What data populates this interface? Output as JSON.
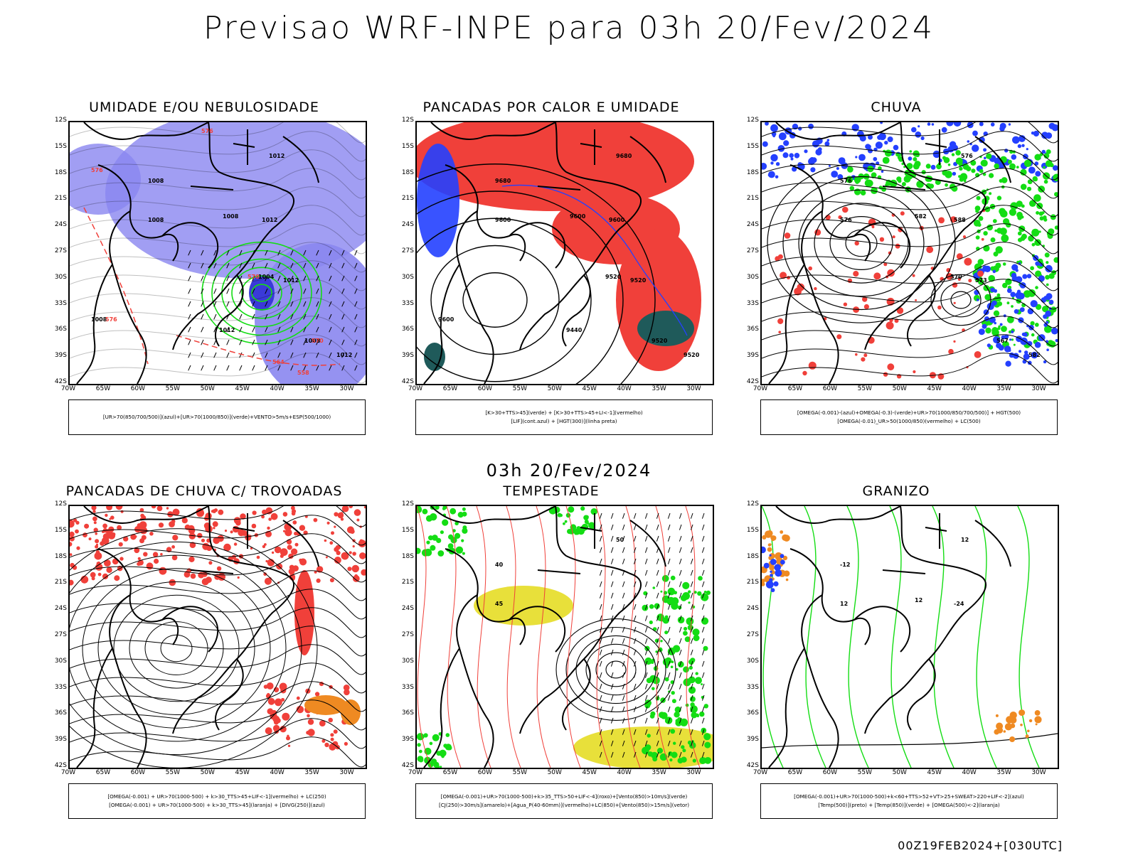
{
  "title": "Previsao WRF-INPE  para 03h 20/Fev/2024",
  "mid_title": "03h 20/Fev/2024",
  "footer": "00Z19FEB2024+[030UTC]",
  "axes": {
    "lat_labels": [
      "12S",
      "15S",
      "18S",
      "21S",
      "24S",
      "27S",
      "30S",
      "33S",
      "36S",
      "39S",
      "42S"
    ],
    "lon_labels": [
      "70W",
      "65W",
      "60W",
      "55W",
      "50W",
      "45W",
      "40W",
      "35W",
      "30W"
    ]
  },
  "colors": {
    "red": "#f0403a",
    "blue": "#2440ff",
    "green": "#14dd14",
    "lavender": "#8a86f0",
    "teal": "#1f5a5a",
    "orange": "#ef8a22",
    "yellow": "#e8e03a"
  },
  "panels": [
    {
      "title": "UMIDADE E/OU NEBULOSIDADE",
      "legend": [
        "[UR>70(850/700/500)](azul)+[UR>70(1000/850)](verde)+VENTO>5m/s+ESP(500/1000)"
      ],
      "labels": [
        "1012",
        "1008",
        "1008",
        "1008",
        "1012",
        "1012",
        "1004",
        "1008",
        "1012",
        "1008",
        "1012",
        "576",
        "576",
        "576",
        "570",
        "570",
        "564",
        "558"
      ]
    },
    {
      "title": "PANCADAS POR CALOR E UMIDADE",
      "legend": [
        "[K>30+TTS>45](verde) + [K>30+TTS>45+LI<-1](vermelho)",
        "[LIF](cont.azul) + [HGT(300)](linha preta)"
      ],
      "labels": [
        "9680",
        "9680",
        "9600",
        "9600",
        "9600",
        "9520",
        "9520",
        "9520",
        "9520",
        "9600",
        "9440"
      ]
    },
    {
      "title": "CHUVA",
      "legend": [
        "[OMEGA(-0.001)-(azul)+OMEGA(-0.3)-(verde)+UR>70(1000/850/700/500)] + HGT(500)",
        "[OMEGA(-0.01)_UR>50(1000/850)(vermelho) + LC(500)"
      ],
      "labels": [
        "576",
        "576",
        "576",
        "582",
        "588",
        "573",
        "570",
        "567",
        "582"
      ]
    },
    {
      "title": "PANCADAS DE CHUVA C/ TROVOADAS",
      "legend": [
        "[OMEGA(-0.001) + UR>70(1000-500) + k>30_TTS>45+LIF<-1](vermelho) + LC(250)",
        "[OMEGA(-0.001) + UR>70(1000-500) + k>30_TTS>45](laranja) + [DIVG(250)](azul)"
      ],
      "labels": []
    },
    {
      "title": "TEMPESTADE",
      "legend": [
        "[OMEGA(-0.001)+UR>70(1000-500)+k>35_TTS>50+LIF<-4](roxo)+[Vento(850)>10m/s](verde)",
        "[CJ(250)>30m/s](amarelo)+[Agua_P(40-60mm)](vermelho)+LC(850)+[Vento(850)>15m/s](vetor)"
      ],
      "labels": [
        "50",
        "40",
        "45"
      ]
    },
    {
      "title": "GRANIZO",
      "legend": [
        "[OMEGA(-0.001)+UR>70(1000-500)+k<60+TTS>52+VT>25+SWEAT>220+LIF<-2](azul)",
        "[Temp(500)](preto) + [Temp(850)](verde) + [OMEGA(500)<-2](laranja)"
      ],
      "labels": [
        "12",
        "-12",
        "12",
        "12",
        "-24"
      ]
    }
  ]
}
